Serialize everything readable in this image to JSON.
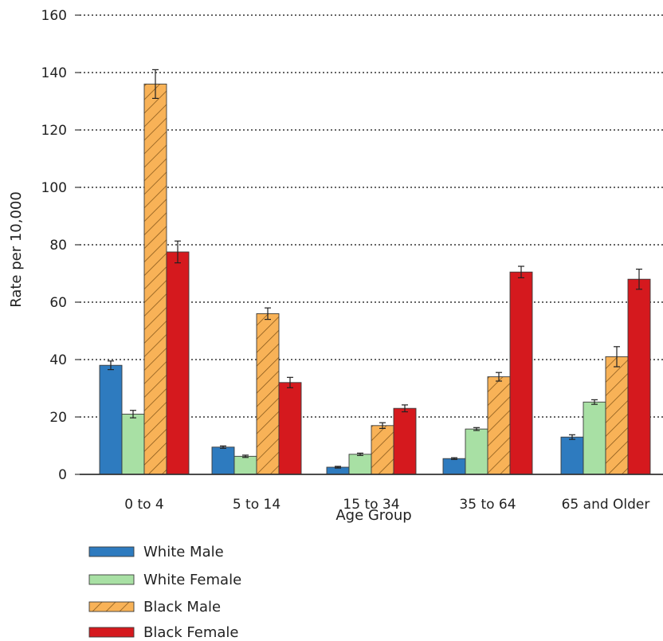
{
  "chart_data": {
    "type": "bar",
    "title": "",
    "xlabel": "Age Group",
    "ylabel": "Rate per 10,000",
    "ylim": [
      0,
      160
    ],
    "yticks": [
      0,
      20,
      40,
      60,
      80,
      100,
      120,
      140,
      160
    ],
    "grid": "horizontal dotted",
    "legend_position": "bottom-left",
    "categories": [
      "0 to 4",
      "5 to 14",
      "15 to 34",
      "35 to 64",
      "65 and Older"
    ],
    "series": [
      {
        "name": "White Male",
        "color": "#2e7bbf",
        "pattern": "solid",
        "values": [
          38,
          9.5,
          2.5,
          5.5,
          13
        ],
        "error": [
          1.5,
          0.4,
          0.3,
          0.3,
          0.8
        ]
      },
      {
        "name": "White Female",
        "color": "#a8e0a4",
        "pattern": "solid",
        "values": [
          21,
          6.3,
          7,
          15.8,
          25.2
        ],
        "error": [
          1.3,
          0.4,
          0.4,
          0.5,
          0.8
        ]
      },
      {
        "name": "Black Male",
        "color": "#f8b257",
        "pattern": "hatched",
        "values": [
          136,
          56,
          17,
          34,
          41
        ],
        "error": [
          5,
          2,
          1,
          1.5,
          3.5
        ]
      },
      {
        "name": "Black Female",
        "color": "#d5191e",
        "pattern": "solid",
        "values": [
          77.5,
          32,
          23,
          70.5,
          68
        ],
        "error": [
          3.8,
          1.8,
          1.2,
          2,
          3.5
        ]
      }
    ]
  }
}
